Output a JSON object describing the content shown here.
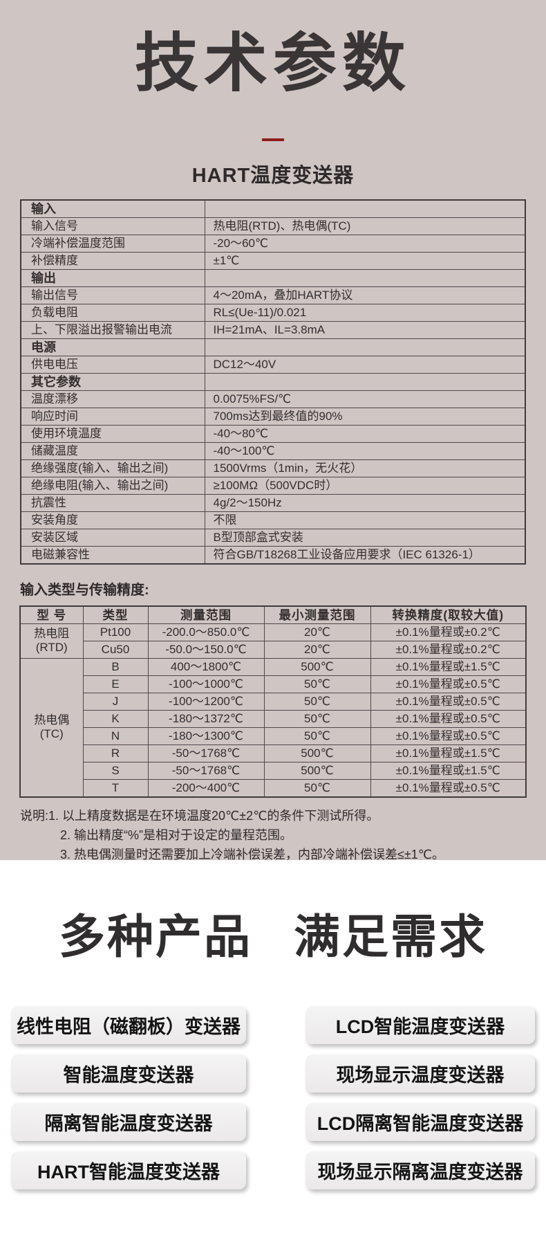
{
  "colors": {
    "background_beige": "#cfc5c3",
    "accent_maroon": "#8f1d1d",
    "text_dark": "#332e2f",
    "button_bg": "#efeeee"
  },
  "header": {
    "title": "技术参数",
    "subtitle": "HART温度变送器"
  },
  "spec": {
    "rows": [
      {
        "label": "输入",
        "value": ""
      },
      {
        "label": "输入信号",
        "value": "热电阻(RTD)、热电偶(TC)"
      },
      {
        "label": "冷端补偿温度范围",
        "value": "-20～60℃"
      },
      {
        "label": "补偿精度",
        "value": "±1℃"
      },
      {
        "label": "输出",
        "value": ""
      },
      {
        "label": "输出信号",
        "value": "4～20mA，叠加HART协议"
      },
      {
        "label": "负载电阻",
        "value": "RL≤(Ue-11)/0.021"
      },
      {
        "label": "上、下限溢出报警输出电流",
        "value": "IH=21mA、IL=3.8mA"
      },
      {
        "label": "电源",
        "value": ""
      },
      {
        "label": "供电电压",
        "value": "DC12～40V"
      },
      {
        "label": "其它参数",
        "value": ""
      },
      {
        "label": "温度漂移",
        "value": "0.0075%FS/℃"
      },
      {
        "label": "响应时间",
        "value": "700ms达到最终值的90%"
      },
      {
        "label": "使用环境温度",
        "value": "-40～80℃"
      },
      {
        "label": "储藏温度",
        "value": "-40～100℃"
      },
      {
        "label": "绝缘强度(输入、输出之间)",
        "value": "1500Vrms（1min，无火花）"
      },
      {
        "label": "绝缘电阻(输入、输出之间)",
        "value": "≥100MΩ（500VDC时）"
      },
      {
        "label": "抗震性",
        "value": "4g/2～150Hz"
      },
      {
        "label": "安装角度",
        "value": "不限"
      },
      {
        "label": "安装区域",
        "value": "B型顶部盒式安装"
      },
      {
        "label": "电磁兼容性",
        "value": "符合GB/T18268工业设备应用要求（IEC 61326-1）"
      }
    ]
  },
  "accuracy": {
    "section_label": "输入类型与传输精度:",
    "headers": [
      "型 号",
      "类型",
      "测量范围",
      "最小测量范围",
      "转换精度(取较大值)"
    ],
    "groups": {
      "rtd": "热电阻\n(RTD)",
      "tc": "热电偶\n(TC)"
    },
    "rows": [
      {
        "type": "Pt100",
        "range": "-200.0～850.0℃",
        "min_range": "20℃",
        "accuracy": "±0.1%量程或±0.2℃"
      },
      {
        "type": "Cu50",
        "range": "-50.0～150.0℃",
        "min_range": "20℃",
        "accuracy": "±0.1%量程或±0.2℃"
      },
      {
        "type": "B",
        "range": "400～1800℃",
        "min_range": "500℃",
        "accuracy": "±0.1%量程或±1.5℃"
      },
      {
        "type": "E",
        "range": "-100～1000℃",
        "min_range": "50℃",
        "accuracy": "±0.1%量程或±0.5℃"
      },
      {
        "type": "J",
        "range": "-100～1200℃",
        "min_range": "50℃",
        "accuracy": "±0.1%量程或±0.5℃"
      },
      {
        "type": "K",
        "range": "-180～1372℃",
        "min_range": "50℃",
        "accuracy": "±0.1%量程或±0.5℃"
      },
      {
        "type": "N",
        "range": "-180～1300℃",
        "min_range": "50℃",
        "accuracy": "±0.1%量程或±0.5℃"
      },
      {
        "type": "R",
        "range": "-50～1768℃",
        "min_range": "500℃",
        "accuracy": "±0.1%量程或±1.5℃"
      },
      {
        "type": "S",
        "range": "-50～1768℃",
        "min_range": "500℃",
        "accuracy": "±0.1%量程或±1.5℃"
      },
      {
        "type": "T",
        "range": "-200～400℃",
        "min_range": "50℃",
        "accuracy": "±0.1%量程或±0.5℃"
      }
    ]
  },
  "notes": [
    "说明:1. 以上精度数据是在环境温度20℃±2℃的条件下测试所得。",
    "2. 输出精度“%”是相对于设定的量程范围。",
    "3. 热电偶测量时还需要加上冷端补偿误差，内部冷端补偿误差≤±1℃。"
  ],
  "products": {
    "heading_left": "多种产品",
    "heading_right": "满足需求",
    "left": [
      "线性电阻（磁翻板）变送器",
      "智能温度变送器",
      "隔离智能温度变送器",
      "HART智能温度变送器"
    ],
    "right": [
      "LCD智能温度变送器",
      "现场显示温度变送器",
      "LCD隔离智能温度变送器",
      "现场显示隔离温度变送器"
    ]
  }
}
